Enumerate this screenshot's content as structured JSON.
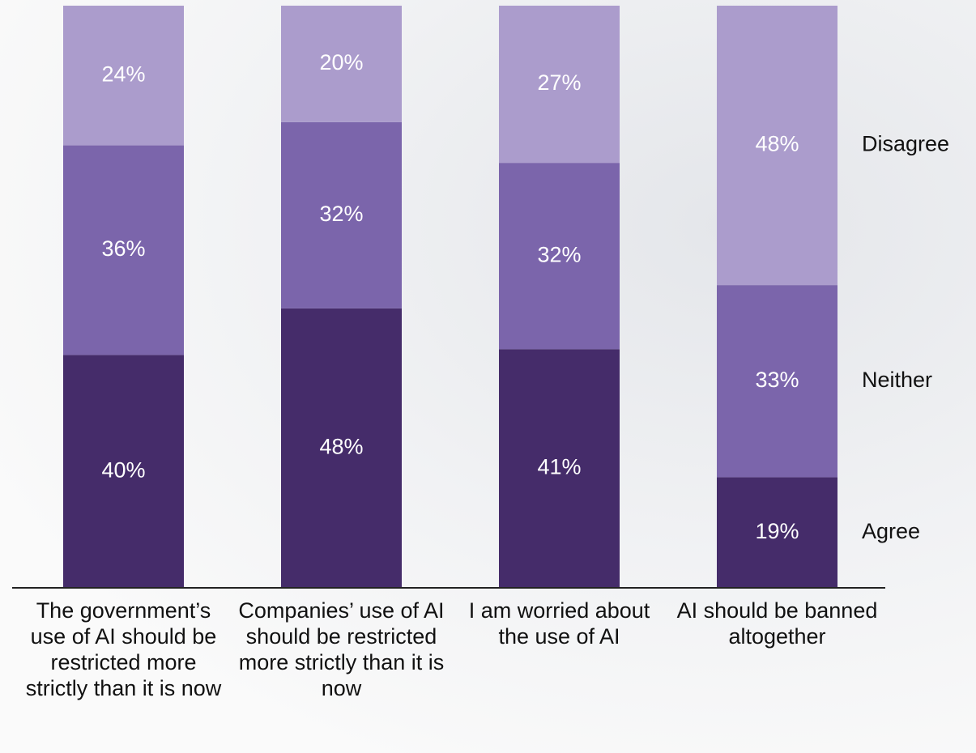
{
  "chart_data": {
    "type": "stacked-bar",
    "categories": [
      "The government’s use of AI should be restricted more strictly than it is now",
      "Companies’ use of AI should be restricted more strictly than it is now",
      "I am worried about the use of AI",
      "AI should be banned altogether"
    ],
    "series": [
      {
        "name": "Agree",
        "color": "#452c6a",
        "values": [
          40,
          48,
          41,
          19
        ],
        "value_labels": [
          "40%",
          "48%",
          "41%",
          "19%"
        ]
      },
      {
        "name": "Neither",
        "color": "#7b65ab",
        "values": [
          36,
          32,
          32,
          33
        ],
        "value_labels": [
          "36%",
          "32%",
          "32%",
          "33%"
        ]
      },
      {
        "name": "Disagree",
        "color": "#ab9ccc",
        "values": [
          24,
          20,
          27,
          48
        ],
        "value_labels": [
          "24%",
          "20%",
          "27%",
          "48%"
        ]
      }
    ],
    "ylim": [
      0,
      100
    ]
  }
}
